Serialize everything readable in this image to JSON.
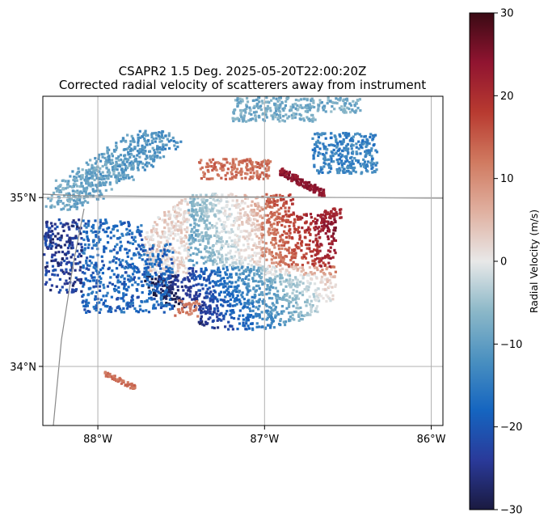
{
  "chart_data": {
    "type": "heatmap",
    "title": "CSAPR2 1.5 Deg. 2025-05-20T22:00:20Z",
    "subtitle": "Corrected radial velocity of scatterers away from instrument",
    "x_ticks": [
      {
        "value": -88,
        "label": "88°W"
      },
      {
        "value": -87,
        "label": "87°W"
      },
      {
        "value": -86,
        "label": "86°W"
      }
    ],
    "y_ticks": [
      {
        "value": 35,
        "label": "35°N"
      },
      {
        "value": 34,
        "label": "34°N"
      }
    ],
    "xlim": [
      -88.33,
      -85.93
    ],
    "ylim": [
      33.65,
      35.6
    ],
    "grid": true,
    "colorbar": {
      "label": "Radial Velocity (m/s)",
      "range": [
        -30,
        30
      ],
      "ticks": [
        {
          "value": 30,
          "label": "30"
        },
        {
          "value": 20,
          "label": "20"
        },
        {
          "value": 10,
          "label": "10"
        },
        {
          "value": 0,
          "label": "0"
        },
        {
          "value": -10,
          "label": "−10"
        },
        {
          "value": -20,
          "label": "−20"
        },
        {
          "value": -30,
          "label": "−30"
        }
      ],
      "colors": [
        "#1a1a40",
        "#2a3a9a",
        "#1565c0",
        "#4a90c0",
        "#8cb8c8",
        "#e8e8e8",
        "#e0b0a0",
        "#d07a60",
        "#b83a30",
        "#901430",
        "#3a0a14"
      ]
    }
  }
}
